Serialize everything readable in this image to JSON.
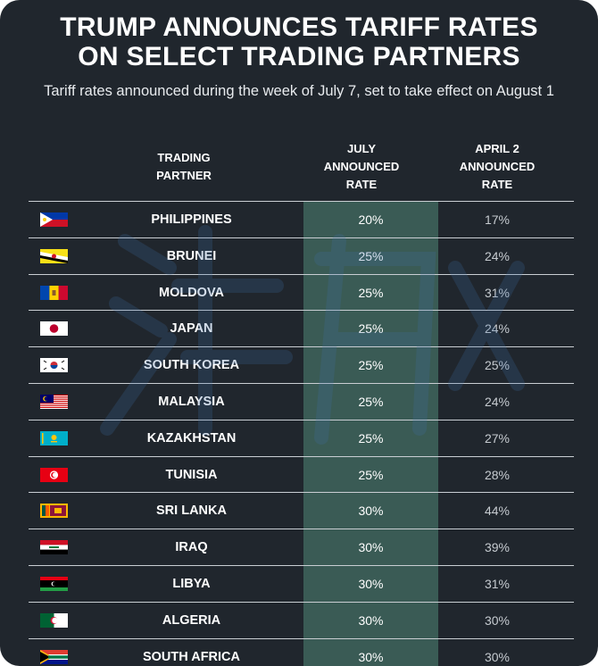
{
  "title_line1": "TRUMP ANNOUNCES TARIFF RATES",
  "title_line2": "ON SELECT TRADING PARTNERS",
  "subtitle": "Tariff rates announced during the week of July 7, set to take effect on August 1",
  "headers": {
    "partner_1": "TRADING",
    "partner_2": "PARTNER",
    "july_1": "JULY",
    "july_2": "ANNOUNCED",
    "july_3": "RATE",
    "april_1": "APRIL 2",
    "april_2": "ANNOUNCED",
    "april_3": "RATE"
  },
  "colors": {
    "background": "#20262d",
    "highlight_column": "#3a5b55",
    "row_divider": "#c9ced3"
  },
  "chart_data": {
    "type": "table",
    "title": "TRUMP ANNOUNCES TARIFF RATES ON SELECT TRADING PARTNERS",
    "subtitle": "Tariff rates announced during the week of July 7, set to take effect on August 1",
    "columns": [
      "TRADING PARTNER",
      "JULY ANNOUNCED RATE",
      "APRIL 2 ANNOUNCED RATE"
    ],
    "rows": [
      {
        "flag": "philippines-flag-icon",
        "partner": "PHILIPPINES",
        "july": "20%",
        "april": "17%"
      },
      {
        "flag": "brunei-flag-icon",
        "partner": "BRUNEI",
        "july": "25%",
        "april": "24%"
      },
      {
        "flag": "moldova-flag-icon",
        "partner": "MOLDOVA",
        "july": "25%",
        "april": "31%"
      },
      {
        "flag": "japan-flag-icon",
        "partner": "JAPAN",
        "july": "25%",
        "april": "24%"
      },
      {
        "flag": "south-korea-flag-icon",
        "partner": "SOUTH KOREA",
        "july": "25%",
        "april": "25%"
      },
      {
        "flag": "malaysia-flag-icon",
        "partner": "MALAYSIA",
        "july": "25%",
        "april": "24%"
      },
      {
        "flag": "kazakhstan-flag-icon",
        "partner": "KAZAKHSTAN",
        "july": "25%",
        "april": "27%"
      },
      {
        "flag": "tunisia-flag-icon",
        "partner": "TUNISIA",
        "july": "25%",
        "april": "28%"
      },
      {
        "flag": "sri-lanka-flag-icon",
        "partner": "SRI LANKA",
        "july": "30%",
        "april": "44%"
      },
      {
        "flag": "iraq-flag-icon",
        "partner": "IRAQ",
        "july": "30%",
        "april": "39%"
      },
      {
        "flag": "libya-flag-icon",
        "partner": "LIBYA",
        "july": "30%",
        "april": "31%"
      },
      {
        "flag": "algeria-flag-icon",
        "partner": "ALGERIA",
        "july": "30%",
        "april": "30%"
      },
      {
        "flag": "south-africa-flag-icon",
        "partner": "SOUTH AFRICA",
        "july": "30%",
        "april": "30%"
      }
    ]
  }
}
